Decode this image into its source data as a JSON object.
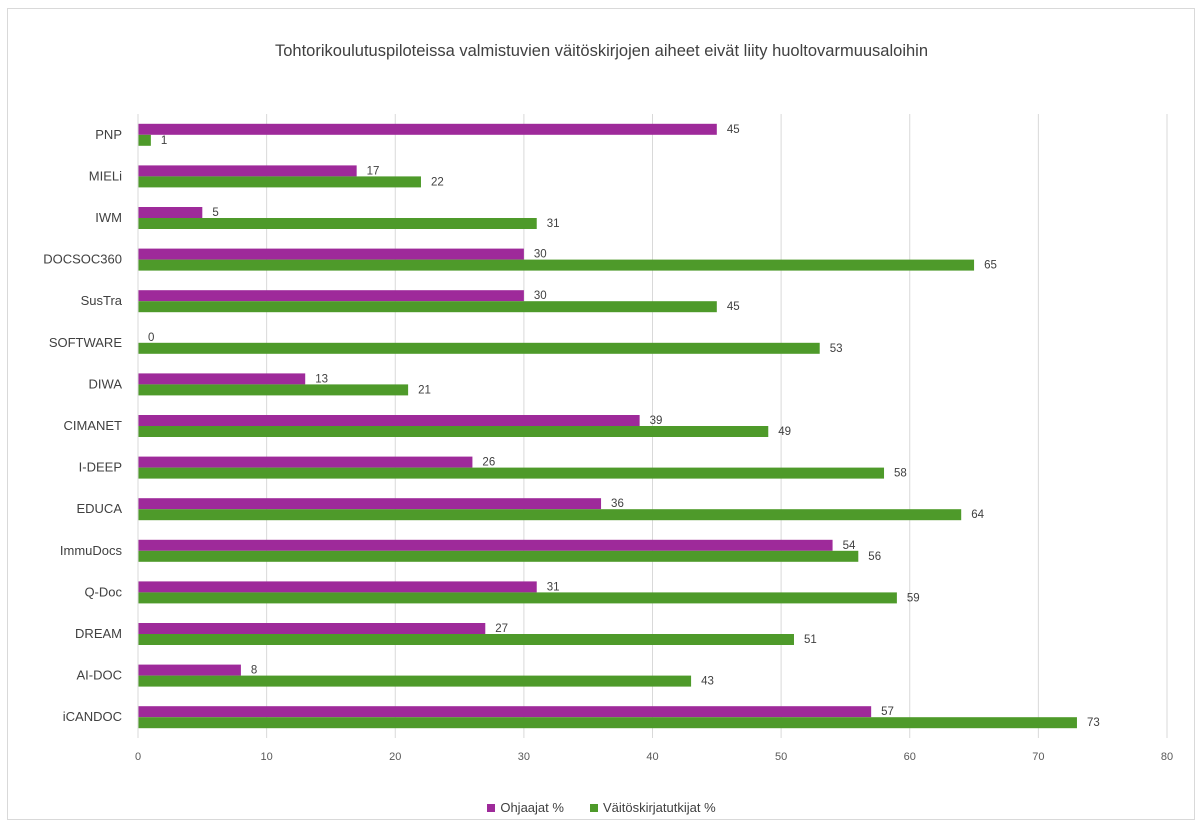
{
  "chart_data": {
    "type": "bar",
    "orientation": "horizontal",
    "title": "Tohtorikoulutuspiloteissa valmistuvien väitöskirjojen aiheet eivät liity huoltovarmuusaloihin",
    "categories": [
      "PNP",
      "MIELi",
      "IWM",
      "DOCSOC360",
      "SusTra",
      "SOFTWARE",
      "DIWA",
      "CIMANET",
      "I-DEEP",
      "EDUCA",
      "ImmuDocs",
      "Q-Doc",
      "DREAM",
      "AI-DOC",
      "iCANDOC"
    ],
    "series": [
      {
        "name": "Ohjaajat %",
        "color": "#9E2A9A",
        "values": [
          45,
          17,
          5,
          30,
          30,
          0,
          13,
          39,
          26,
          36,
          54,
          31,
          27,
          8,
          57
        ]
      },
      {
        "name": "Väitöskirjatutkijat %",
        "color": "#4E9A2A",
        "values": [
          1,
          22,
          31,
          65,
          45,
          53,
          21,
          49,
          58,
          64,
          56,
          59,
          51,
          43,
          73
        ]
      }
    ],
    "xlim": [
      0,
      80
    ],
    "xticks": [
      0,
      10,
      20,
      30,
      40,
      50,
      60,
      70,
      80
    ],
    "grid": true,
    "legend_position": "bottom"
  }
}
